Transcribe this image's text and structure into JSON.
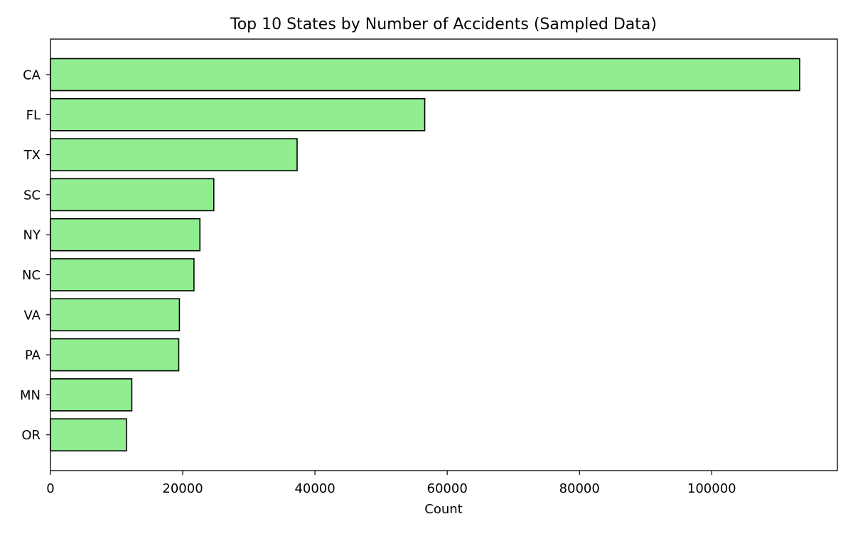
{
  "chart_data": {
    "type": "bar",
    "orientation": "horizontal",
    "title": "Top 10 States by Number of Accidents (Sampled Data)",
    "xlabel": "Count",
    "ylabel": "",
    "categories": [
      "CA",
      "FL",
      "TX",
      "SC",
      "NY",
      "NC",
      "VA",
      "PA",
      "MN",
      "OR"
    ],
    "values": [
      113300,
      56600,
      37300,
      24700,
      22600,
      21700,
      19500,
      19400,
      12300,
      11500
    ],
    "xlim": [
      0,
      119000
    ],
    "xticks": [
      0,
      20000,
      40000,
      60000,
      80000,
      100000
    ],
    "xtick_labels": [
      "0",
      "20000",
      "40000",
      "60000",
      "80000",
      "100000"
    ],
    "grid": false,
    "legend": "none",
    "colors": {
      "bar_fill": "#90ee90",
      "bar_edge": "#000000",
      "axes": "#000000"
    }
  }
}
